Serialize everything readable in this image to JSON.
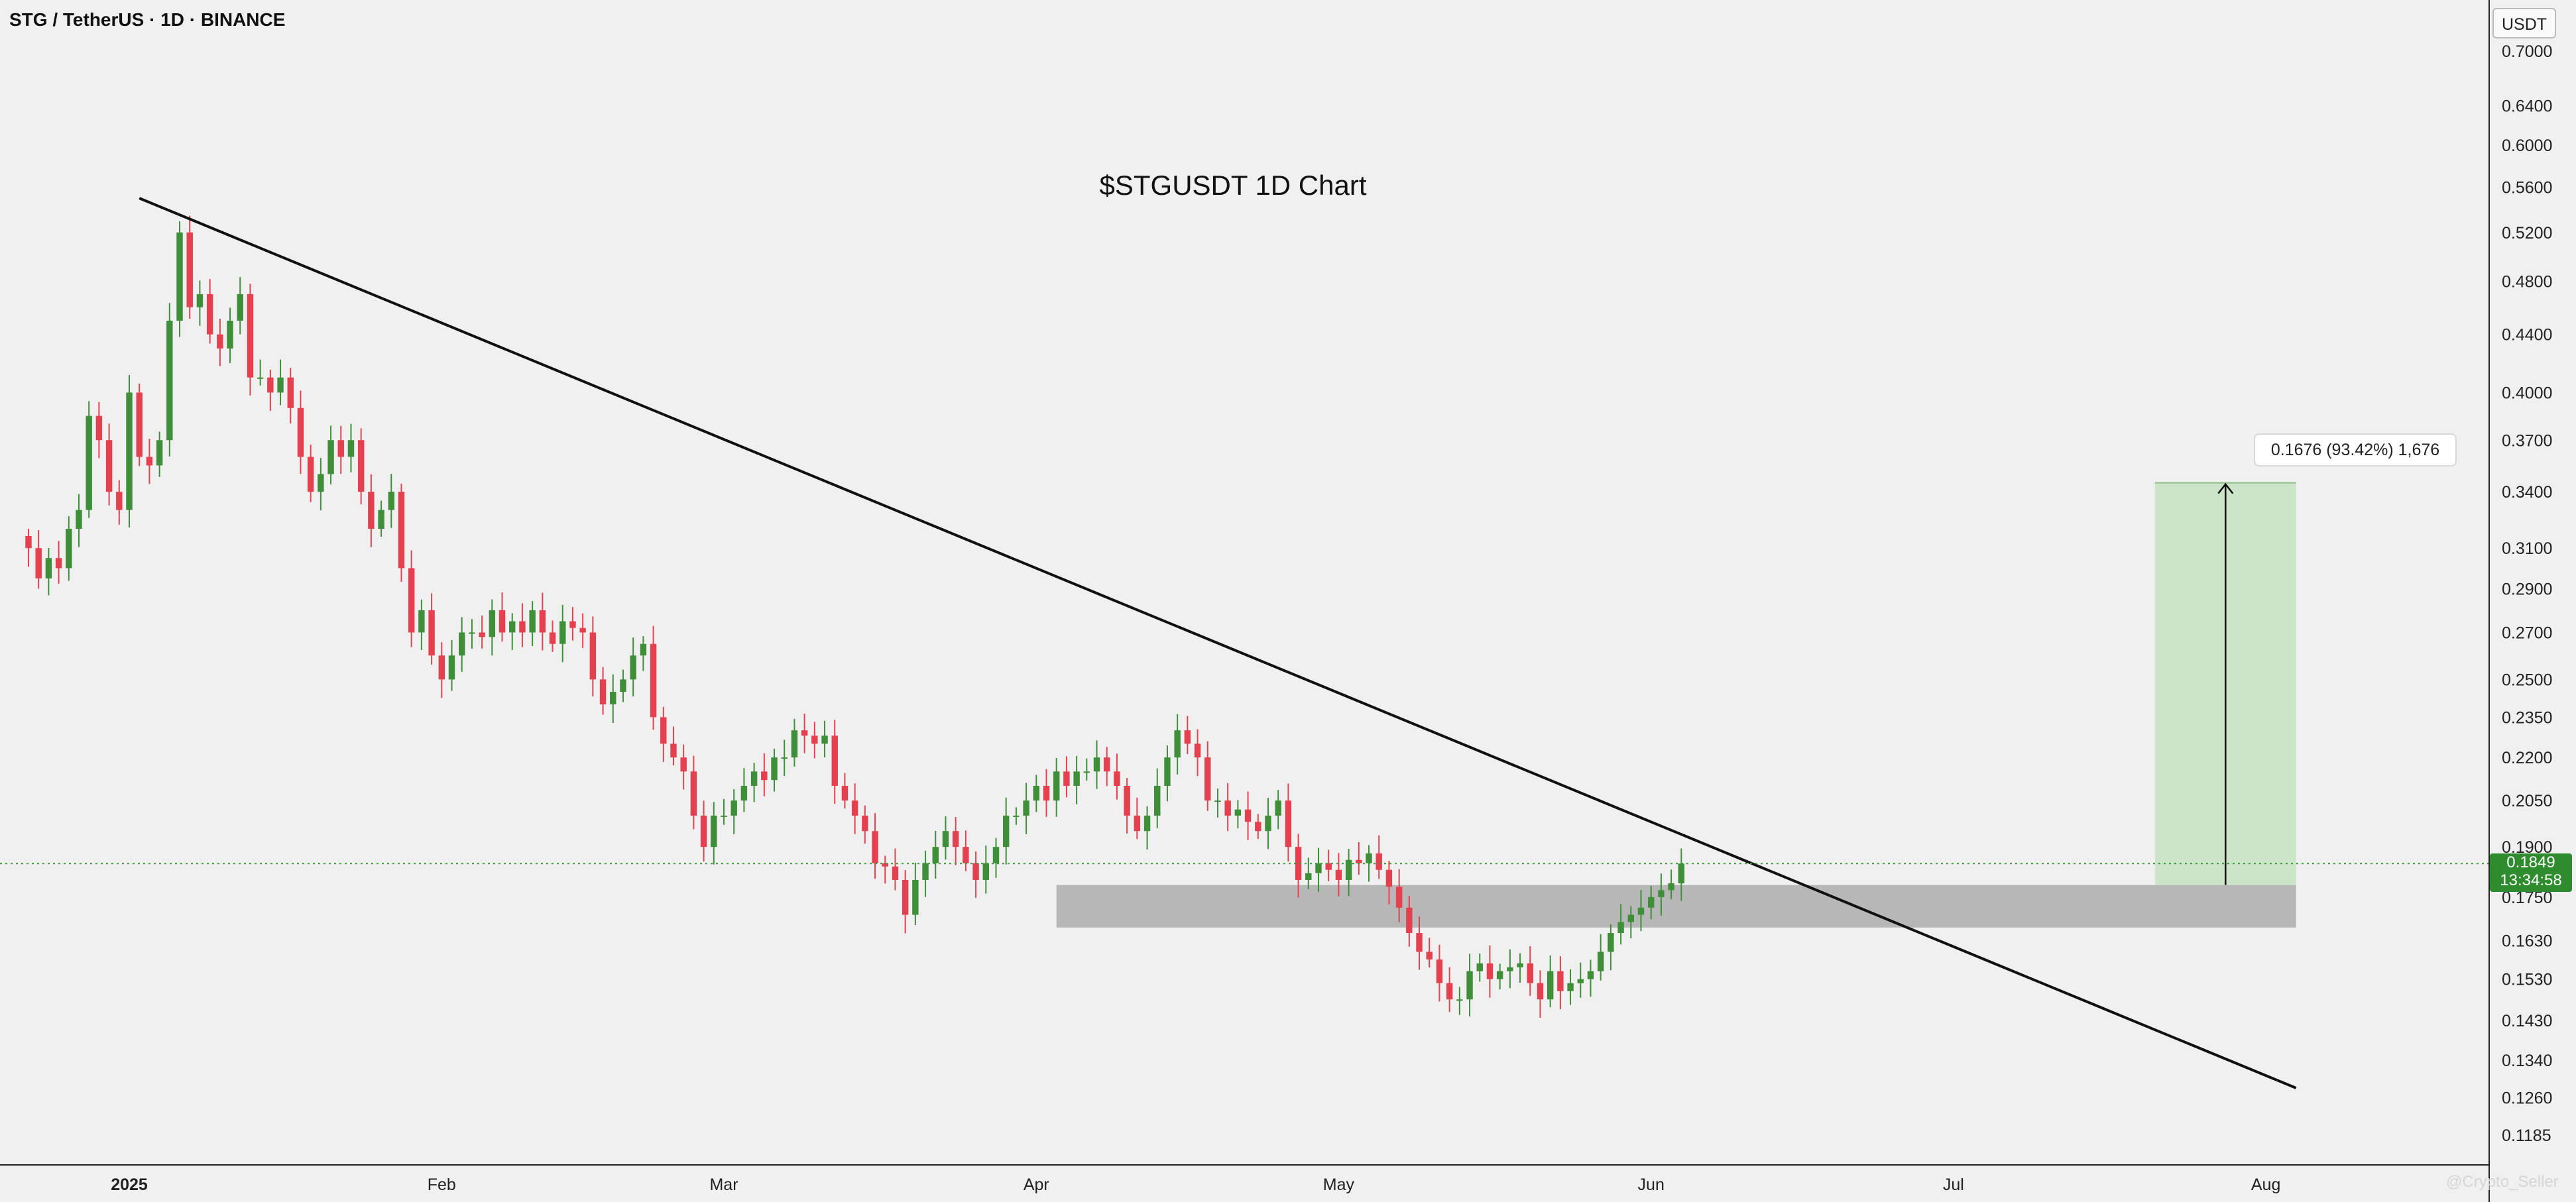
{
  "header": {
    "symbol": "STG / TetherUS · 1D · BINANCE",
    "currency": "USDT"
  },
  "title": "$STGUSDT 1D Chart",
  "measure": {
    "label": "0.1676 (93.42%) 1,676"
  },
  "last_price": {
    "price": "0.1849",
    "countdown": "13:34:58"
  },
  "watermark": "@Crypto_Seller",
  "colors": {
    "up": "#3f8f3a",
    "down": "#e5404f",
    "background": "#f0f0f0",
    "zone": "#b3b3b3",
    "target": "#c9e4c5",
    "trendline": "#111111"
  },
  "chart_data": {
    "type": "candlestick",
    "y_scale": "log",
    "ylim": [
      0.112,
      0.74
    ],
    "y_ticks": [
      "0.7000",
      "0.6400",
      "0.6000",
      "0.5600",
      "0.5200",
      "0.4800",
      "0.4400",
      "0.4000",
      "0.3700",
      "0.3400",
      "0.3100",
      "0.2900",
      "0.2700",
      "0.2500",
      "0.2350",
      "0.2200",
      "0.2050",
      "0.1900",
      "0.1750",
      "0.1630",
      "0.1530",
      "0.1430",
      "0.1340",
      "0.1260",
      "0.1185"
    ],
    "x_labels": [
      "2025",
      "Feb",
      "Mar",
      "Apr",
      "May",
      "Jun",
      "Jul",
      "Aug"
    ],
    "x_label_dates": [
      "2025-01-01",
      "2025-02-01",
      "2025-03-01",
      "2025-04-01",
      "2025-05-01",
      "2025-06-01",
      "2025-07-01",
      "2025-08-01"
    ],
    "start_date": "2024-12-22",
    "end_date": "2025-07-21",
    "closes": [
      0.31,
      0.295,
      0.305,
      0.3,
      0.32,
      0.33,
      0.385,
      0.37,
      0.34,
      0.33,
      0.4,
      0.36,
      0.355,
      0.37,
      0.45,
      0.52,
      0.46,
      0.47,
      0.44,
      0.43,
      0.45,
      0.47,
      0.41,
      0.41,
      0.4,
      0.41,
      0.39,
      0.36,
      0.34,
      0.35,
      0.37,
      0.36,
      0.37,
      0.34,
      0.32,
      0.33,
      0.34,
      0.3,
      0.27,
      0.28,
      0.26,
      0.25,
      0.26,
      0.27,
      0.27,
      0.268,
      0.28,
      0.27,
      0.275,
      0.27,
      0.28,
      0.27,
      0.265,
      0.275,
      0.272,
      0.27,
      0.25,
      0.24,
      0.245,
      0.25,
      0.26,
      0.265,
      0.235,
      0.225,
      0.22,
      0.215,
      0.2,
      0.19,
      0.2,
      0.2,
      0.205,
      0.21,
      0.215,
      0.212,
      0.22,
      0.22,
      0.23,
      0.228,
      0.225,
      0.228,
      0.21,
      0.205,
      0.2,
      0.195,
      0.185,
      0.184,
      0.18,
      0.17,
      0.18,
      0.185,
      0.19,
      0.195,
      0.19,
      0.185,
      0.18,
      0.185,
      0.19,
      0.2,
      0.2,
      0.205,
      0.21,
      0.205,
      0.215,
      0.21,
      0.215,
      0.215,
      0.22,
      0.215,
      0.21,
      0.2,
      0.195,
      0.2,
      0.21,
      0.22,
      0.23,
      0.225,
      0.22,
      0.205,
      0.205,
      0.2,
      0.202,
      0.198,
      0.195,
      0.2,
      0.205,
      0.19,
      0.18,
      0.182,
      0.185,
      0.183,
      0.18,
      0.186,
      0.185,
      0.188,
      0.183,
      0.178,
      0.172,
      0.165,
      0.16,
      0.158,
      0.152,
      0.148,
      0.148,
      0.155,
      0.157,
      0.153,
      0.155,
      0.156,
      0.157,
      0.152,
      0.148,
      0.155,
      0.15,
      0.152,
      0.153,
      0.155,
      0.16,
      0.165,
      0.168,
      0.17,
      0.172,
      0.175,
      0.177,
      0.179,
      0.1849
    ],
    "trendline": {
      "from": {
        "date": "2025-01-02",
        "price": 0.55
      },
      "to": {
        "date": "2025-08-04",
        "price": 0.128
      }
    },
    "support_zone": {
      "from_date": "2025-04-03",
      "to_date": "2025-08-04",
      "low": 0.1665,
      "high": 0.1785
    },
    "target_zone": {
      "from_date": "2025-07-21",
      "to_date": "2025-08-04",
      "low": 0.1785,
      "high": 0.345
    },
    "last_price_line": 0.1849
  }
}
